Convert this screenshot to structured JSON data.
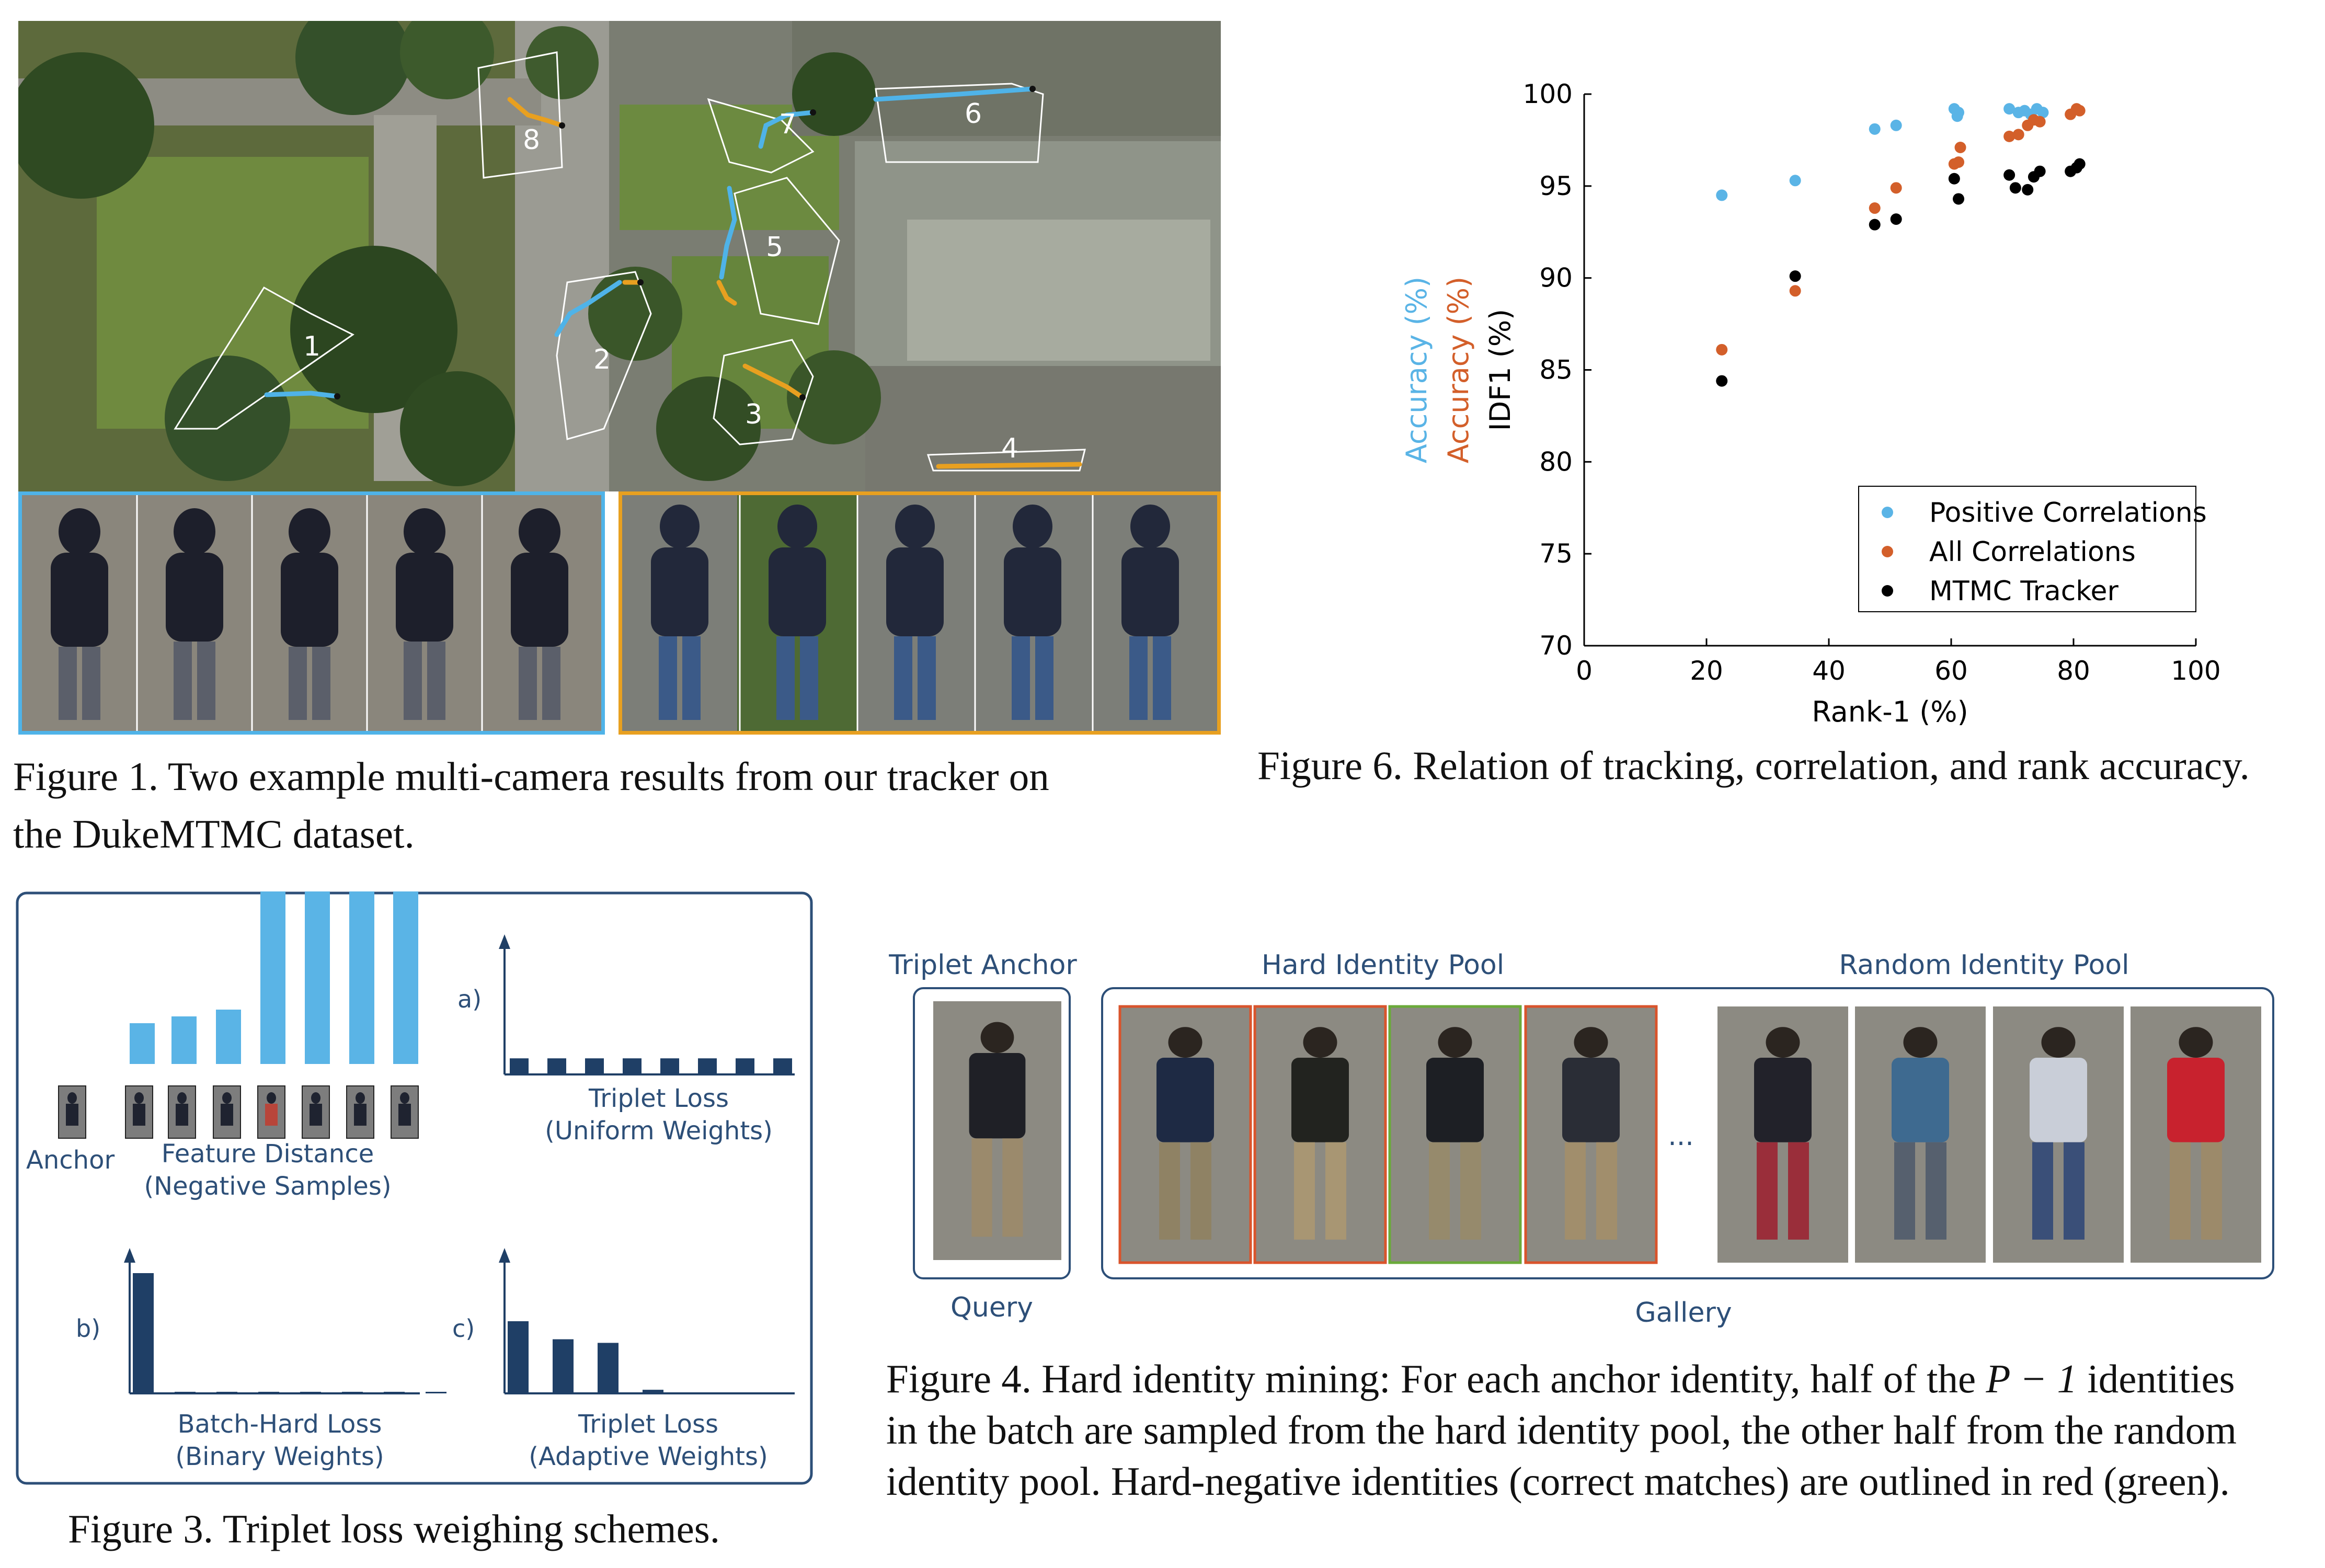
{
  "fig1": {
    "caption_line1": "Figure 1. Two example multi-camera results from our tracker on",
    "caption_line2": "the DukeMTMC dataset.",
    "camera_labels": [
      "1",
      "2",
      "3",
      "4",
      "5",
      "6",
      "7",
      "8"
    ],
    "colors": {
      "blue_track": "#4fb3e8",
      "orange_track": "#e8a020",
      "blue_frame": "#4fb3e8",
      "orange_frame": "#e8a020"
    }
  },
  "fig6": {
    "caption": "Figure 6. Relation of tracking, correlation, and rank accuracy.",
    "chart_data": {
      "type": "scatter",
      "xlabel": "Rank-1 (%)",
      "ylabel_parts": [
        {
          "text": "Accuracy (%)",
          "color": "#5ab4e6"
        },
        {
          "text": "Accuracy (%)",
          "color": "#d35f2a"
        },
        {
          "text": "IDF1 (%)",
          "color": "#000000"
        }
      ],
      "xlim": [
        0,
        100
      ],
      "ylim": [
        70,
        100
      ],
      "xticks": [
        "0",
        "20",
        "40",
        "60",
        "80",
        "100"
      ],
      "yticks": [
        "70",
        "75",
        "80",
        "85",
        "90",
        "95",
        "100"
      ],
      "legend_position": "bottom-right",
      "series": [
        {
          "name": "Positive Correlations",
          "color": "#5ab4e6",
          "points": [
            [
              22.5,
              94.5
            ],
            [
              34.5,
              95.3
            ],
            [
              47.5,
              98.1
            ],
            [
              51,
              98.3
            ],
            [
              60.5,
              99.2
            ],
            [
              61,
              98.8
            ],
            [
              61.2,
              99.0
            ],
            [
              69.5,
              99.2
            ],
            [
              71,
              99.0
            ],
            [
              72,
              99.1
            ],
            [
              73,
              98.9
            ],
            [
              74,
              99.2
            ],
            [
              75,
              99.0
            ]
          ]
        },
        {
          "name": "All Correlations",
          "color": "#d35f2a",
          "points": [
            [
              22.5,
              86.1
            ],
            [
              34.5,
              89.3
            ],
            [
              47.5,
              93.8
            ],
            [
              51,
              94.9
            ],
            [
              60.5,
              96.2
            ],
            [
              61.2,
              96.3
            ],
            [
              61.5,
              97.1
            ],
            [
              69.5,
              97.7
            ],
            [
              71,
              97.8
            ],
            [
              72.5,
              98.3
            ],
            [
              73.5,
              98.6
            ],
            [
              74.5,
              98.5
            ],
            [
              79.5,
              98.9
            ],
            [
              80.5,
              99.2
            ],
            [
              81,
              99.1
            ]
          ]
        },
        {
          "name": "MTMC Tracker",
          "color": "#000000",
          "points": [
            [
              22.5,
              84.4
            ],
            [
              34.5,
              90.1
            ],
            [
              47.5,
              92.9
            ],
            [
              51,
              93.2
            ],
            [
              60.5,
              95.4
            ],
            [
              61.2,
              94.3
            ],
            [
              69.5,
              95.6
            ],
            [
              70.5,
              94.9
            ],
            [
              72.5,
              94.8
            ],
            [
              73.5,
              95.5
            ],
            [
              74.5,
              95.8
            ],
            [
              79.5,
              95.8
            ],
            [
              80.5,
              96.0
            ],
            [
              81,
              96.2
            ]
          ]
        }
      ]
    }
  },
  "fig3": {
    "caption": "Figure 3. Triplet loss weighing schemes.",
    "anchor_label": "Anchor",
    "feature_distance_line1": "Feature Distance",
    "feature_distance_line2": "(Negative Samples)",
    "panel_a": {
      "letter": "a)",
      "line1": "Triplet Loss",
      "line2": "(Uniform Weights)",
      "weights": [
        1,
        1,
        1,
        1,
        1,
        1,
        1,
        1
      ]
    },
    "panel_b": {
      "letter": "b)",
      "line1": "Batch-Hard Loss",
      "line2": "(Binary Weights)",
      "weights": [
        1,
        0,
        0,
        0,
        0,
        0,
        0,
        0
      ]
    },
    "panel_c": {
      "letter": "c)",
      "line1": "Triplet Loss",
      "line2": "(Adaptive Weights)",
      "weights": [
        0.6,
        0.45,
        0.42,
        0.03
      ]
    },
    "feature_distances": [
      0.12,
      0.14,
      0.16,
      0.58,
      0.64,
      0.68,
      0.68
    ],
    "colors": {
      "light_bar": "#5ab4e6",
      "dark_bar": "#1f3f66",
      "frame": "#2d4f78"
    }
  },
  "fig4": {
    "caption_line1": "Figure 4. Hard identity mining: For each anchor identity, half of the",
    "caption_math": "P − 1",
    "caption_line1_end": " identities",
    "caption_line2": "in the batch are sampled from the hard identity pool, the other half from the random",
    "caption_line3": "identity pool. Hard-negative identities (correct matches) are outlined in red (green).",
    "triplet_anchor": "Triplet Anchor",
    "hard_pool": "Hard Identity Pool",
    "random_pool": "Random Identity Pool",
    "query": "Query",
    "gallery": "Gallery",
    "ellipsis": "...",
    "hard_outline_colors": [
      "#d9542c",
      "#d9542c",
      "#6aaa3a",
      "#d9542c"
    ],
    "colors": {
      "box": "#2d4f78",
      "label": "#2d4f78"
    }
  }
}
